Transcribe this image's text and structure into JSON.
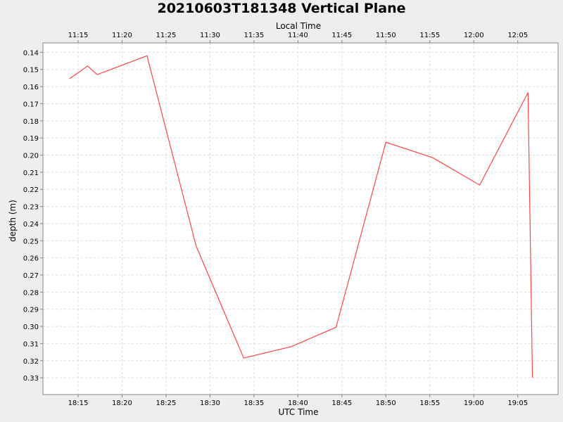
{
  "chart_data": {
    "type": "line",
    "title": "20210603T181348 Vertical Plane",
    "xlabel": "UTC Time",
    "x2label": "Local Time",
    "ylabel": "depth (m)",
    "y_inverted": true,
    "xlim": [
      "18:11:00",
      "19:09:35"
    ],
    "ylim": [
      0.1345,
      0.3398
    ],
    "grid": true,
    "x_ticks": [
      "18:15",
      "18:20",
      "18:25",
      "18:30",
      "18:35",
      "18:40",
      "18:45",
      "18:50",
      "18:55",
      "19:00",
      "19:05"
    ],
    "x2_ticks": [
      "11:15",
      "11:20",
      "11:25",
      "11:30",
      "11:35",
      "11:40",
      "11:45",
      "11:50",
      "11:55",
      "12:00",
      "12:05"
    ],
    "y_ticks": [
      "0.14",
      "0.15",
      "0.16",
      "0.17",
      "0.18",
      "0.19",
      "0.20",
      "0.21",
      "0.22",
      "0.23",
      "0.24",
      "0.25",
      "0.26",
      "0.27",
      "0.28",
      "0.29",
      "0.30",
      "0.31",
      "0.32",
      "0.33"
    ],
    "line_color": "#ff4444",
    "series": [
      {
        "x": [
          "18:14:00",
          "18:16:05",
          "18:17:10",
          "18:22:50",
          "18:28:25",
          "18:33:50",
          "18:39:15",
          "18:44:20",
          "18:50:00",
          "18:55:20",
          "19:00:40",
          "19:06:10",
          "19:06:40"
        ],
        "y": [
          0.1555,
          0.148,
          0.153,
          0.142,
          0.253,
          0.3185,
          0.3118,
          0.3005,
          0.1925,
          0.2015,
          0.2175,
          0.1635,
          0.33
        ]
      }
    ]
  }
}
